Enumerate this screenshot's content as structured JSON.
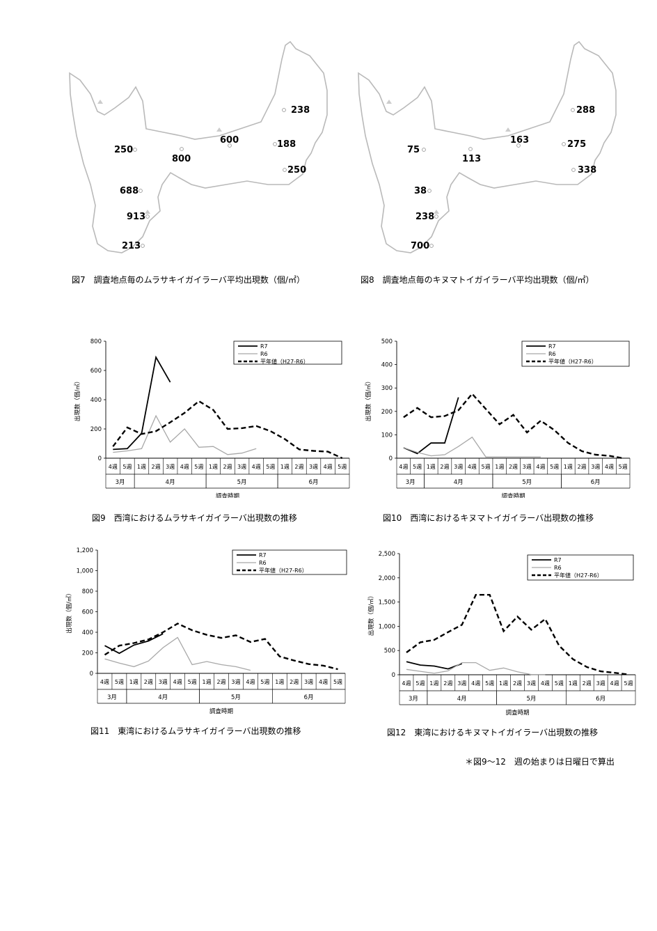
{
  "maps": [
    {
      "caption": "図7　調査地点毎のムラサキイガイラーバ平均出現数（個/㎡）",
      "points": [
        {
          "label": "238"
        },
        {
          "label": "250"
        },
        {
          "label": "800"
        },
        {
          "label": "600"
        },
        {
          "label": "188"
        },
        {
          "label": "250"
        },
        {
          "label": "688"
        },
        {
          "label": "913"
        },
        {
          "label": "213"
        }
      ]
    },
    {
      "caption": "図8　調査地点毎のキヌマトイガイラーバ平均出現数（個/㎡）",
      "points": [
        {
          "label": "288"
        },
        {
          "label": "75"
        },
        {
          "label": "113"
        },
        {
          "label": "163"
        },
        {
          "label": "275"
        },
        {
          "label": "338"
        },
        {
          "label": "38"
        },
        {
          "label": "238"
        },
        {
          "label": "700"
        }
      ]
    }
  ],
  "chart_data": [
    {
      "type": "line",
      "caption": "図9　西湾におけるムラサキイガイラーバ出現数の推移",
      "ylabel": "出現数（個/㎡）",
      "xlabel": "調査時期",
      "ylim": [
        0,
        800
      ],
      "yticks": [
        "0",
        "200",
        "400",
        "600",
        "800"
      ],
      "weeks": [
        "4週",
        "5週",
        "1週",
        "2週",
        "3週",
        "4週",
        "5週",
        "1週",
        "2週",
        "3週",
        "4週",
        "5週",
        "1週",
        "2週",
        "3週",
        "4週",
        "5週"
      ],
      "months": [
        "3月",
        "4月",
        "5月",
        "6月"
      ],
      "series": [
        {
          "name": "R7",
          "values": [
            60,
            65,
            170,
            690,
            520,
            null,
            null,
            null,
            null,
            null,
            null,
            null,
            null,
            null,
            null,
            null,
            null
          ]
        },
        {
          "name": "R6",
          "values": [
            40,
            50,
            65,
            290,
            110,
            200,
            75,
            80,
            25,
            35,
            65,
            null,
            null,
            null,
            null,
            null,
            null
          ]
        },
        {
          "name": "平年値（H27-R6）",
          "values": [
            80,
            210,
            165,
            185,
            245,
            310,
            390,
            330,
            200,
            205,
            220,
            185,
            130,
            60,
            50,
            45,
            0
          ]
        }
      ]
    },
    {
      "type": "line",
      "caption": "図10　西湾におけるキヌマトイガイラーバ出現数の推移",
      "ylabel": "出現数（個/㎡）",
      "xlabel": "調査時期",
      "ylim": [
        0,
        500
      ],
      "yticks": [
        "0",
        "100",
        "200",
        "300",
        "400",
        "500"
      ],
      "weeks": [
        "4週",
        "5週",
        "1週",
        "2週",
        "3週",
        "4週",
        "5週",
        "1週",
        "2週",
        "3週",
        "4週",
        "5週",
        "1週",
        "2週",
        "3週",
        "4週",
        "5週"
      ],
      "months": [
        "3月",
        "4月",
        "5月",
        "6月"
      ],
      "series": [
        {
          "name": "R7",
          "values": [
            45,
            20,
            65,
            65,
            260,
            null,
            null,
            null,
            null,
            null,
            null,
            null,
            null,
            null,
            null,
            null,
            null
          ]
        },
        {
          "name": "R6",
          "values": [
            45,
            25,
            10,
            15,
            50,
            90,
            5,
            5,
            5,
            5,
            5,
            null,
            null,
            null,
            null,
            null,
            null
          ]
        },
        {
          "name": "平年値（H27-R6）",
          "values": [
            175,
            215,
            175,
            180,
            205,
            275,
            210,
            145,
            185,
            110,
            160,
            120,
            65,
            30,
            15,
            10,
            0
          ]
        }
      ]
    },
    {
      "type": "line",
      "caption": "図11　東湾におけるムラサキイガイラーバ出現数の推移",
      "ylabel": "出現数（個/㎡）",
      "xlabel": "調査時期",
      "ylim": [
        0,
        1200
      ],
      "yticks": [
        "0",
        "200",
        "400",
        "600",
        "800",
        "1,000",
        "1,200"
      ],
      "weeks": [
        "4週",
        "5週",
        "1週",
        "2週",
        "3週",
        "4週",
        "5週",
        "1週",
        "2週",
        "3週",
        "4週",
        "5週",
        "1週",
        "2週",
        "3週",
        "4週",
        "5週"
      ],
      "months": [
        "3月",
        "4月",
        "5月",
        "6月"
      ],
      "series": [
        {
          "name": "R7",
          "values": [
            270,
            195,
            275,
            315,
            385,
            null,
            null,
            null,
            null,
            null,
            null,
            null,
            null,
            null,
            null,
            null,
            null
          ]
        },
        {
          "name": "R6",
          "values": [
            140,
            100,
            65,
            120,
            250,
            350,
            85,
            115,
            85,
            65,
            30,
            null,
            null,
            null,
            null,
            null,
            null
          ]
        },
        {
          "name": "平年値（H27-R6）",
          "values": [
            180,
            270,
            295,
            330,
            400,
            485,
            420,
            375,
            345,
            370,
            305,
            335,
            165,
            125,
            90,
            75,
            40
          ]
        }
      ]
    },
    {
      "type": "line",
      "caption": "図12　東湾におけるキヌマトイガイラーバ出現数の推移",
      "ylabel": "出現数（個/㎡）",
      "xlabel": "調査時期",
      "ylim": [
        0,
        2500
      ],
      "yticks": [
        "0",
        "500",
        "1,000",
        "1,500",
        "2,000",
        "2,500"
      ],
      "weeks": [
        "4週",
        "5週",
        "1週",
        "2週",
        "3週",
        "4週",
        "5週",
        "1週",
        "2週",
        "3週",
        "4週",
        "5週",
        "1週",
        "2週",
        "3週",
        "4週",
        "5週"
      ],
      "months": [
        "3月",
        "4月",
        "5月",
        "6月"
      ],
      "series": [
        {
          "name": "R7",
          "values": [
            270,
            200,
            180,
            120,
            230,
            null,
            null,
            null,
            null,
            null,
            null,
            null,
            null,
            null,
            null,
            null,
            null
          ]
        },
        {
          "name": "R6",
          "values": [
            110,
            70,
            30,
            80,
            250,
            250,
            90,
            140,
            60,
            5,
            5,
            null,
            null,
            null,
            null,
            null,
            null
          ]
        },
        {
          "name": "平年値（H27-R6）",
          "values": [
            460,
            670,
            720,
            880,
            1030,
            1650,
            1650,
            900,
            1200,
            930,
            1150,
            600,
            320,
            160,
            70,
            40,
            5
          ]
        }
      ]
    }
  ],
  "note": "＊図9～12　週の始まりは日曜日で算出"
}
